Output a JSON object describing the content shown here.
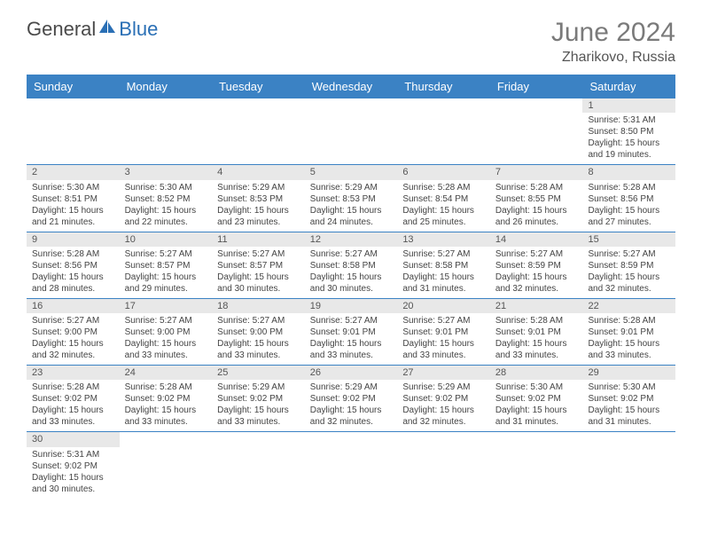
{
  "logo": {
    "text_left": "General",
    "text_right": "Blue",
    "shape_color": "#2a6fb5"
  },
  "title": "June 2024",
  "location": "Zharikovo, Russia",
  "colors": {
    "header_bg": "#3b82c4",
    "header_text": "#ffffff",
    "daynum_bg": "#e8e8e8",
    "row_border": "#3b82c4",
    "body_text": "#444444",
    "title_color": "#7a7a7a"
  },
  "day_names": [
    "Sunday",
    "Monday",
    "Tuesday",
    "Wednesday",
    "Thursday",
    "Friday",
    "Saturday"
  ],
  "weeks": [
    [
      {
        "blank": true
      },
      {
        "blank": true
      },
      {
        "blank": true
      },
      {
        "blank": true
      },
      {
        "blank": true
      },
      {
        "blank": true
      },
      {
        "n": "1",
        "sunrise": "5:31 AM",
        "sunset": "8:50 PM",
        "daylight": "15 hours and 19 minutes."
      }
    ],
    [
      {
        "n": "2",
        "sunrise": "5:30 AM",
        "sunset": "8:51 PM",
        "daylight": "15 hours and 21 minutes."
      },
      {
        "n": "3",
        "sunrise": "5:30 AM",
        "sunset": "8:52 PM",
        "daylight": "15 hours and 22 minutes."
      },
      {
        "n": "4",
        "sunrise": "5:29 AM",
        "sunset": "8:53 PM",
        "daylight": "15 hours and 23 minutes."
      },
      {
        "n": "5",
        "sunrise": "5:29 AM",
        "sunset": "8:53 PM",
        "daylight": "15 hours and 24 minutes."
      },
      {
        "n": "6",
        "sunrise": "5:28 AM",
        "sunset": "8:54 PM",
        "daylight": "15 hours and 25 minutes."
      },
      {
        "n": "7",
        "sunrise": "5:28 AM",
        "sunset": "8:55 PM",
        "daylight": "15 hours and 26 minutes."
      },
      {
        "n": "8",
        "sunrise": "5:28 AM",
        "sunset": "8:56 PM",
        "daylight": "15 hours and 27 minutes."
      }
    ],
    [
      {
        "n": "9",
        "sunrise": "5:28 AM",
        "sunset": "8:56 PM",
        "daylight": "15 hours and 28 minutes."
      },
      {
        "n": "10",
        "sunrise": "5:27 AM",
        "sunset": "8:57 PM",
        "daylight": "15 hours and 29 minutes."
      },
      {
        "n": "11",
        "sunrise": "5:27 AM",
        "sunset": "8:57 PM",
        "daylight": "15 hours and 30 minutes."
      },
      {
        "n": "12",
        "sunrise": "5:27 AM",
        "sunset": "8:58 PM",
        "daylight": "15 hours and 30 minutes."
      },
      {
        "n": "13",
        "sunrise": "5:27 AM",
        "sunset": "8:58 PM",
        "daylight": "15 hours and 31 minutes."
      },
      {
        "n": "14",
        "sunrise": "5:27 AM",
        "sunset": "8:59 PM",
        "daylight": "15 hours and 32 minutes."
      },
      {
        "n": "15",
        "sunrise": "5:27 AM",
        "sunset": "8:59 PM",
        "daylight": "15 hours and 32 minutes."
      }
    ],
    [
      {
        "n": "16",
        "sunrise": "5:27 AM",
        "sunset": "9:00 PM",
        "daylight": "15 hours and 32 minutes."
      },
      {
        "n": "17",
        "sunrise": "5:27 AM",
        "sunset": "9:00 PM",
        "daylight": "15 hours and 33 minutes."
      },
      {
        "n": "18",
        "sunrise": "5:27 AM",
        "sunset": "9:00 PM",
        "daylight": "15 hours and 33 minutes."
      },
      {
        "n": "19",
        "sunrise": "5:27 AM",
        "sunset": "9:01 PM",
        "daylight": "15 hours and 33 minutes."
      },
      {
        "n": "20",
        "sunrise": "5:27 AM",
        "sunset": "9:01 PM",
        "daylight": "15 hours and 33 minutes."
      },
      {
        "n": "21",
        "sunrise": "5:28 AM",
        "sunset": "9:01 PM",
        "daylight": "15 hours and 33 minutes."
      },
      {
        "n": "22",
        "sunrise": "5:28 AM",
        "sunset": "9:01 PM",
        "daylight": "15 hours and 33 minutes."
      }
    ],
    [
      {
        "n": "23",
        "sunrise": "5:28 AM",
        "sunset": "9:02 PM",
        "daylight": "15 hours and 33 minutes."
      },
      {
        "n": "24",
        "sunrise": "5:28 AM",
        "sunset": "9:02 PM",
        "daylight": "15 hours and 33 minutes."
      },
      {
        "n": "25",
        "sunrise": "5:29 AM",
        "sunset": "9:02 PM",
        "daylight": "15 hours and 33 minutes."
      },
      {
        "n": "26",
        "sunrise": "5:29 AM",
        "sunset": "9:02 PM",
        "daylight": "15 hours and 32 minutes."
      },
      {
        "n": "27",
        "sunrise": "5:29 AM",
        "sunset": "9:02 PM",
        "daylight": "15 hours and 32 minutes."
      },
      {
        "n": "28",
        "sunrise": "5:30 AM",
        "sunset": "9:02 PM",
        "daylight": "15 hours and 31 minutes."
      },
      {
        "n": "29",
        "sunrise": "5:30 AM",
        "sunset": "9:02 PM",
        "daylight": "15 hours and 31 minutes."
      }
    ],
    [
      {
        "n": "30",
        "sunrise": "5:31 AM",
        "sunset": "9:02 PM",
        "daylight": "15 hours and 30 minutes."
      },
      {
        "blank": true
      },
      {
        "blank": true
      },
      {
        "blank": true
      },
      {
        "blank": true
      },
      {
        "blank": true
      },
      {
        "blank": true
      }
    ]
  ],
  "labels": {
    "sunrise": "Sunrise:",
    "sunset": "Sunset:",
    "daylight": "Daylight:"
  }
}
